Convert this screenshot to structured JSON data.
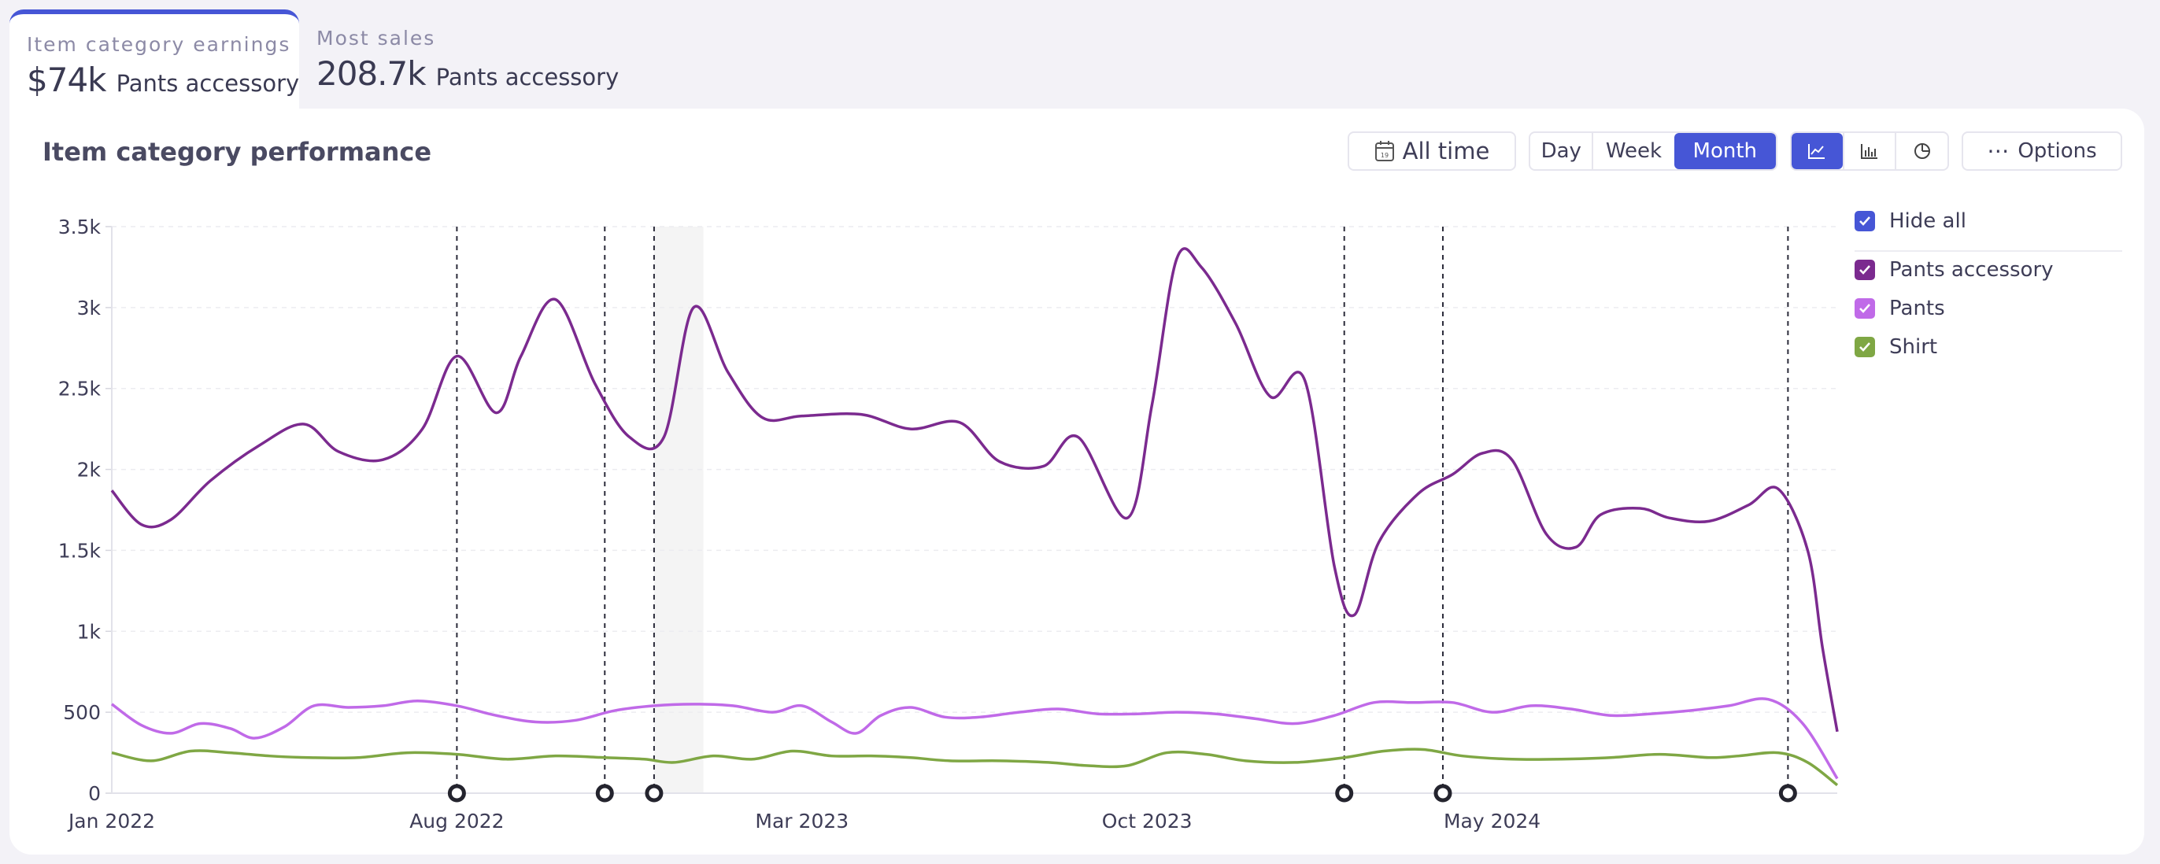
{
  "tabs": [
    {
      "label": "Item category earnings",
      "value": "$74k",
      "name": "Pants accessory",
      "active": true
    },
    {
      "label": "Most sales",
      "value": "208.7k",
      "name": "Pants accessory",
      "active": false
    }
  ],
  "card": {
    "title": "Item category performance"
  },
  "toolbar": {
    "range_label": "All time",
    "period_options": [
      "Day",
      "Week",
      "Month"
    ],
    "period_selected": "Month",
    "view_icons": [
      "line-chart-icon",
      "bar-chart-icon",
      "pie-chart-icon"
    ],
    "view_selected": "line-chart-icon",
    "options_label": "Options",
    "accent": "#4656d6"
  },
  "legend": {
    "hide_all_label": "Hide all",
    "items": [
      {
        "label": "Pants accessory",
        "color": "#7b2a8f",
        "checked": true
      },
      {
        "label": "Pants",
        "color": "#c06ae8",
        "checked": true
      },
      {
        "label": "Shirt",
        "color": "#7fa744",
        "checked": true
      }
    ]
  },
  "chart_data": {
    "type": "line",
    "x_start": "2022-01",
    "x_end": "2024-12",
    "xtick_labels": [
      {
        "label": "Jan 2022",
        "month": 0
      },
      {
        "label": "Aug 2022",
        "month": 7
      },
      {
        "label": "Mar 2023",
        "month": 14
      },
      {
        "label": "Oct 2023",
        "month": 21
      },
      {
        "label": "May 2024",
        "month": 28
      }
    ],
    "ylim": [
      0,
      3500
    ],
    "yticks": [
      0,
      500,
      1000,
      1500,
      2000,
      2500,
      3000,
      3500
    ],
    "ytick_labels": [
      "0",
      "500",
      "1k",
      "1.5k",
      "2k",
      "2.5k",
      "3k",
      "3.5k"
    ],
    "grid": true,
    "highlight_range_months": [
      11,
      12
    ],
    "markers_months": [
      7,
      10,
      11,
      25,
      27,
      34
    ],
    "series": [
      {
        "name": "Pants accessory",
        "color": "#7b2a8f",
        "points": [
          [
            0,
            1870
          ],
          [
            0.6,
            1660
          ],
          [
            1.2,
            1690
          ],
          [
            2,
            1930
          ],
          [
            3,
            2150
          ],
          [
            3.9,
            2280
          ],
          [
            4.6,
            2110
          ],
          [
            5.5,
            2060
          ],
          [
            6.3,
            2250
          ],
          [
            7,
            2700
          ],
          [
            7.8,
            2350
          ],
          [
            8.3,
            2700
          ],
          [
            9,
            3050
          ],
          [
            9.8,
            2530
          ],
          [
            10.5,
            2200
          ],
          [
            11.2,
            2200
          ],
          [
            11.8,
            3000
          ],
          [
            12.5,
            2600
          ],
          [
            13.2,
            2320
          ],
          [
            14,
            2330
          ],
          [
            15.2,
            2340
          ],
          [
            16.2,
            2250
          ],
          [
            17.2,
            2290
          ],
          [
            18,
            2050
          ],
          [
            18.9,
            2020
          ],
          [
            19.6,
            2200
          ],
          [
            20.6,
            1700
          ],
          [
            21.1,
            2400
          ],
          [
            21.6,
            3300
          ],
          [
            22.1,
            3250
          ],
          [
            22.8,
            2900
          ],
          [
            23.5,
            2450
          ],
          [
            24.2,
            2550
          ],
          [
            24.8,
            1400
          ],
          [
            25.2,
            1100
          ],
          [
            25.7,
            1550
          ],
          [
            26.5,
            1850
          ],
          [
            27.2,
            1970
          ],
          [
            27.8,
            2100
          ],
          [
            28.4,
            2060
          ],
          [
            29.1,
            1600
          ],
          [
            29.7,
            1520
          ],
          [
            30.2,
            1720
          ],
          [
            31,
            1760
          ],
          [
            31.6,
            1700
          ],
          [
            32.4,
            1680
          ],
          [
            33.2,
            1780
          ],
          [
            33.8,
            1880
          ],
          [
            34.4,
            1500
          ],
          [
            34.7,
            900
          ],
          [
            35,
            380
          ]
        ]
      },
      {
        "name": "Pants",
        "color": "#c06ae8",
        "points": [
          [
            0,
            550
          ],
          [
            0.6,
            420
          ],
          [
            1.2,
            370
          ],
          [
            1.8,
            430
          ],
          [
            2.4,
            400
          ],
          [
            2.9,
            340
          ],
          [
            3.5,
            410
          ],
          [
            4.1,
            540
          ],
          [
            4.8,
            530
          ],
          [
            5.5,
            540
          ],
          [
            6.2,
            570
          ],
          [
            7,
            540
          ],
          [
            7.8,
            480
          ],
          [
            8.6,
            440
          ],
          [
            9.4,
            450
          ],
          [
            10.2,
            510
          ],
          [
            11,
            540
          ],
          [
            11.8,
            550
          ],
          [
            12.6,
            540
          ],
          [
            13.4,
            500
          ],
          [
            14,
            540
          ],
          [
            14.6,
            440
          ],
          [
            15.1,
            370
          ],
          [
            15.6,
            480
          ],
          [
            16.2,
            530
          ],
          [
            16.9,
            470
          ],
          [
            17.6,
            470
          ],
          [
            18.4,
            500
          ],
          [
            19.2,
            520
          ],
          [
            20,
            490
          ],
          [
            20.8,
            490
          ],
          [
            21.6,
            500
          ],
          [
            22.4,
            490
          ],
          [
            23.2,
            460
          ],
          [
            24,
            430
          ],
          [
            24.8,
            480
          ],
          [
            25.6,
            560
          ],
          [
            26.4,
            560
          ],
          [
            27.2,
            560
          ],
          [
            28,
            500
          ],
          [
            28.8,
            540
          ],
          [
            29.6,
            520
          ],
          [
            30.4,
            480
          ],
          [
            31.2,
            490
          ],
          [
            32,
            510
          ],
          [
            32.8,
            540
          ],
          [
            33.6,
            580
          ],
          [
            34.3,
            430
          ],
          [
            35,
            90
          ]
        ]
      },
      {
        "name": "Shirt",
        "color": "#7fa744",
        "points": [
          [
            0,
            250
          ],
          [
            0.8,
            200
          ],
          [
            1.6,
            260
          ],
          [
            2.4,
            250
          ],
          [
            3.2,
            230
          ],
          [
            4,
            220
          ],
          [
            5,
            220
          ],
          [
            6,
            250
          ],
          [
            7,
            240
          ],
          [
            8,
            210
          ],
          [
            9,
            230
          ],
          [
            10,
            220
          ],
          [
            10.8,
            210
          ],
          [
            11.4,
            190
          ],
          [
            12.2,
            230
          ],
          [
            13,
            210
          ],
          [
            13.8,
            260
          ],
          [
            14.6,
            230
          ],
          [
            15.4,
            230
          ],
          [
            16.2,
            220
          ],
          [
            17,
            200
          ],
          [
            18,
            200
          ],
          [
            19,
            190
          ],
          [
            19.8,
            170
          ],
          [
            20.6,
            170
          ],
          [
            21.4,
            250
          ],
          [
            22.2,
            240
          ],
          [
            23,
            200
          ],
          [
            24,
            190
          ],
          [
            25,
            220
          ],
          [
            25.8,
            260
          ],
          [
            26.6,
            270
          ],
          [
            27.4,
            230
          ],
          [
            28.4,
            210
          ],
          [
            29.4,
            210
          ],
          [
            30.4,
            220
          ],
          [
            31.4,
            240
          ],
          [
            32.4,
            220
          ],
          [
            33,
            230
          ],
          [
            33.8,
            250
          ],
          [
            34.4,
            190
          ],
          [
            35,
            50
          ]
        ]
      }
    ]
  }
}
